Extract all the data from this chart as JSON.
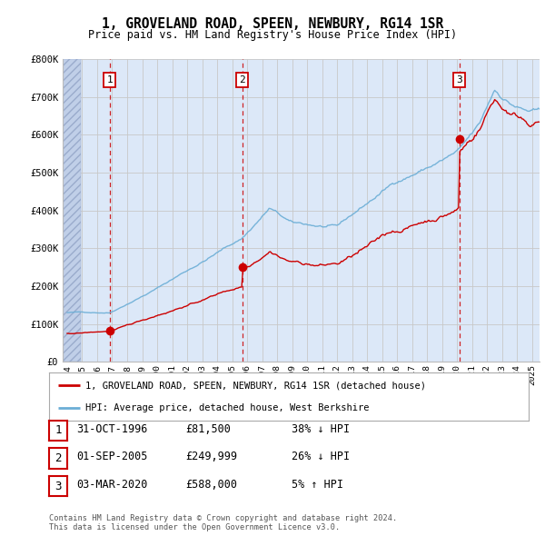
{
  "title": "1, GROVELAND ROAD, SPEEN, NEWBURY, RG14 1SR",
  "subtitle": "Price paid vs. HM Land Registry's House Price Index (HPI)",
  "ylim": [
    0,
    800000
  ],
  "yticks": [
    0,
    100000,
    200000,
    300000,
    400000,
    500000,
    600000,
    700000,
    800000
  ],
  "ytick_labels": [
    "£0",
    "£100K",
    "£200K",
    "£300K",
    "£400K",
    "£500K",
    "£600K",
    "£700K",
    "£800K"
  ],
  "xlim_start": 1993.7,
  "xlim_end": 2025.5,
  "sale_dates": [
    1996.833,
    2005.667,
    2020.167
  ],
  "sale_prices": [
    81500,
    249999,
    588000
  ],
  "sale_labels": [
    "1",
    "2",
    "3"
  ],
  "hpi_color": "#6baed6",
  "sale_color": "#cc0000",
  "vline_color": "#cc0000",
  "grid_color": "#c8c8c8",
  "plot_bg_color": "#dce8f8",
  "legend_label_red": "1, GROVELAND ROAD, SPEEN, NEWBURY, RG14 1SR (detached house)",
  "legend_label_blue": "HPI: Average price, detached house, West Berkshire",
  "table_rows": [
    [
      "1",
      "31-OCT-1996",
      "£81,500",
      "38% ↓ HPI"
    ],
    [
      "2",
      "01-SEP-2005",
      "£249,999",
      "26% ↓ HPI"
    ],
    [
      "3",
      "03-MAR-2020",
      "£588,000",
      "5% ↑ HPI"
    ]
  ],
  "footnote": "Contains HM Land Registry data © Crown copyright and database right 2024.\nThis data is licensed under the Open Government Licence v3.0.",
  "background_color": "#ffffff"
}
